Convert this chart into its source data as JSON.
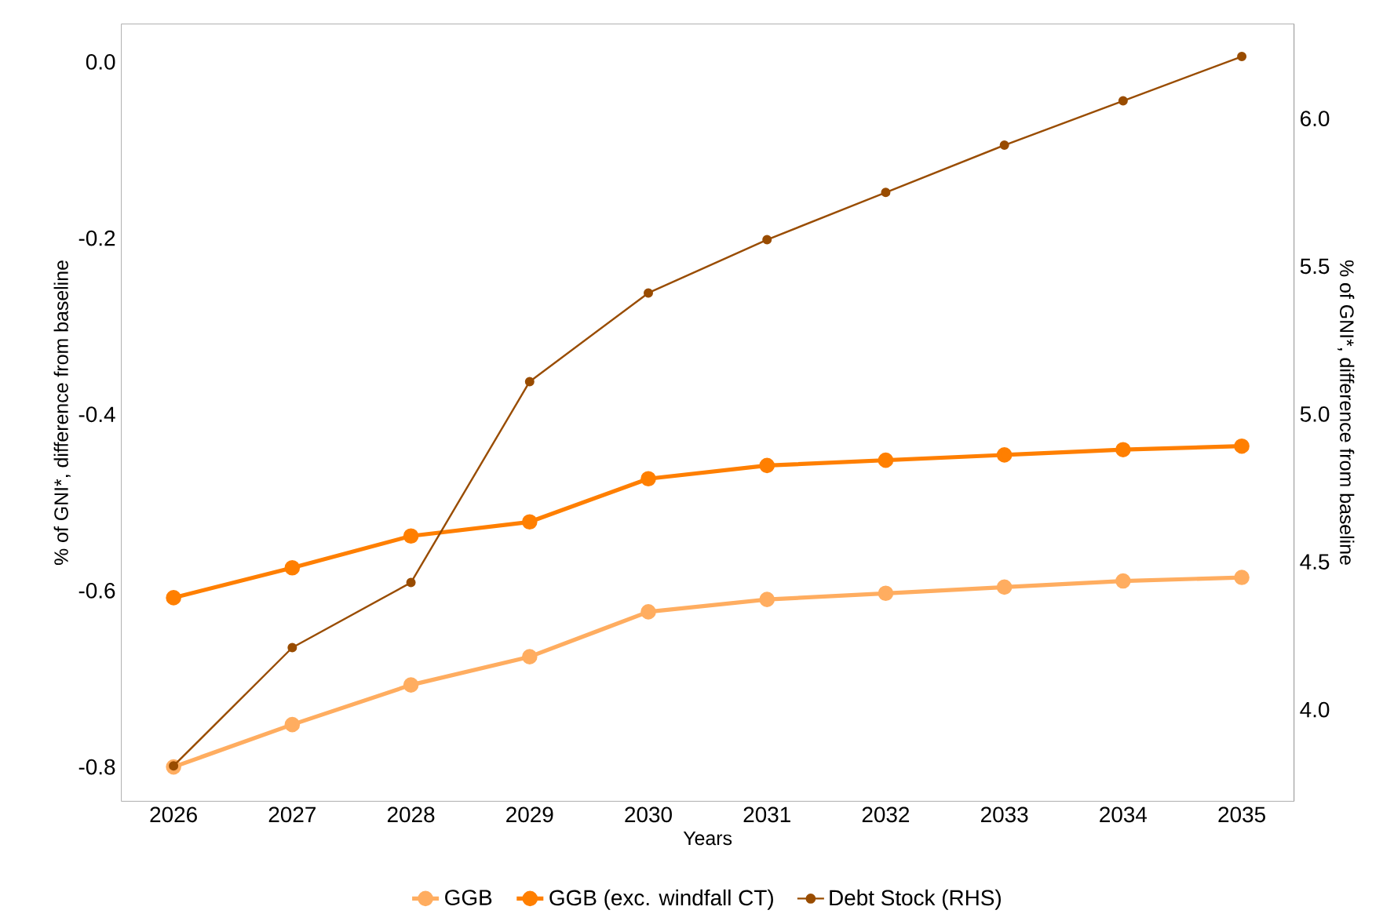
{
  "chart_data": {
    "type": "line",
    "xlabel": "Years",
    "ylabel": "% of GNI*, difference from baseline",
    "y2label": "% of GNI*, difference from baseline",
    "x": [
      2026,
      2027,
      2028,
      2029,
      2030,
      2031,
      2032,
      2033,
      2034,
      2035
    ],
    "xlim": [
      2025.56,
      2035.44
    ],
    "xticks": [
      2026,
      2027,
      2028,
      2029,
      2030,
      2031,
      2032,
      2033,
      2034,
      2035
    ],
    "ylim": [
      -0.839,
      0.043
    ],
    "yticks": [
      {
        "value": -0.8,
        "label": "-0.8"
      },
      {
        "value": -0.6,
        "label": "-0.6"
      },
      {
        "value": -0.4,
        "label": "-0.4"
      },
      {
        "value": -0.2,
        "label": "-0.2"
      },
      {
        "value": 0,
        "label": "0.0"
      }
    ],
    "y2lim": [
      3.69,
      6.32
    ],
    "y2ticks": [
      {
        "value": 4,
        "label": "4.0"
      },
      {
        "value": 4.5,
        "label": "4.5"
      },
      {
        "value": 5,
        "label": "5.0"
      },
      {
        "value": 5.5,
        "label": "5.5"
      },
      {
        "value": 6,
        "label": "6.0"
      }
    ],
    "legend": "bottom",
    "marker": "circle",
    "line_style": "solid",
    "series": [
      {
        "name": "GGB",
        "color": "#ffad60",
        "values": [
          -0.8,
          -0.752,
          -0.707,
          -0.675,
          -0.624,
          -0.61,
          -0.603,
          -0.596,
          -0.589,
          -0.585
        ]
      },
      {
        "name": "GGB (exc. windfall CT)",
        "color": "#ff7f00",
        "values": [
          -0.608,
          -0.574,
          -0.538,
          -0.522,
          -0.473,
          -0.458,
          -0.452,
          -0.446,
          -0.44,
          -0.436
        ]
      },
      {
        "name": "Debt Stock (RHS)",
        "color": "#994c00",
        "axis": "y2",
        "values": [
          3.81,
          4.21,
          4.43,
          5.11,
          5.41,
          5.59,
          5.75,
          5.91,
          6.06,
          6.21
        ]
      }
    ]
  }
}
